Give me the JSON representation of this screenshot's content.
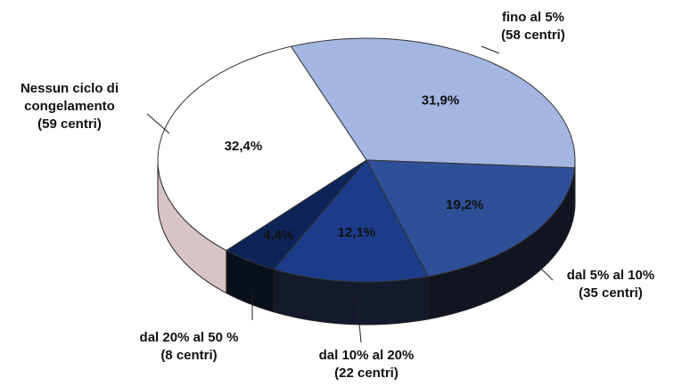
{
  "chart_data": {
    "type": "pie",
    "categories": [
      [
        "fino al 5%",
        "(58 centri)"
      ],
      [
        "dal 5% al 10%",
        "(35 centri)"
      ],
      [
        "dal 10% al 20%",
        "(22 centri)"
      ],
      [
        "dal 20% al 50 %",
        "(8 centri)"
      ],
      [
        "Nessun ciclo di",
        "congelamento",
        "(59 centri)"
      ]
    ],
    "values": [
      31.9,
      19.2,
      12.1,
      4.4,
      32.4
    ],
    "value_labels": [
      "31,9%",
      "19,2%",
      "12,1%",
      "4,4%",
      "32,4%"
    ],
    "colors": [
      "#a3b6e2",
      "#2f4f98",
      "#1c3c8a",
      "#0e2358",
      "#ffffff"
    ],
    "side_colors": [
      "#1a1f2e",
      "#111522",
      "#141a2c",
      "#0a0f1c",
      "#d8c4c4"
    ]
  }
}
